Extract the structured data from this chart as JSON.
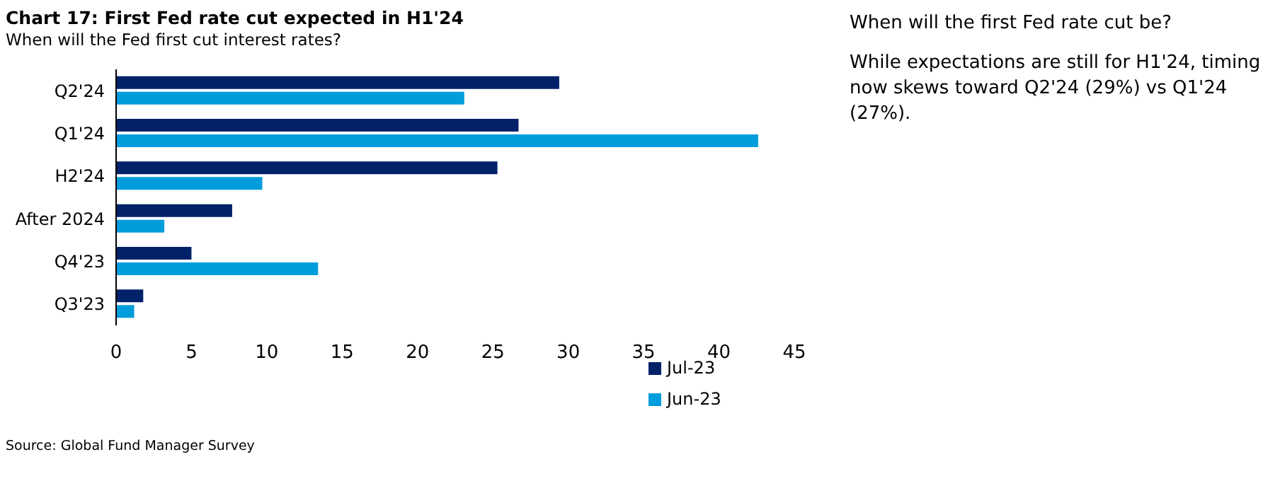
{
  "chart_data": {
    "type": "bar",
    "orientation": "horizontal",
    "title": "Chart 17: First Fed rate cut expected in H1'24",
    "subtitle": "When will the Fed first cut interest rates?",
    "categories": [
      "Q2'24",
      "Q1'24",
      "H2'24",
      "After 2024",
      "Q4'23",
      "Q3'23"
    ],
    "series": [
      {
        "name": "Jul-23",
        "color": "#012169",
        "values": [
          29.4,
          26.7,
          25.3,
          7.7,
          5.0,
          1.8
        ]
      },
      {
        "name": "Jun-23",
        "color": "#009ddc",
        "values": [
          23.1,
          42.6,
          9.7,
          3.2,
          13.4,
          1.2
        ]
      }
    ],
    "xlim": [
      0,
      45
    ],
    "xticks": [
      0,
      5,
      10,
      15,
      20,
      25,
      30,
      35,
      40,
      45
    ],
    "grid": false,
    "legend": "bottom right",
    "annotations": [
      "When will the first Fed rate cut be?",
      "While expectations are still for H1'24, timing now skews toward Q2'24 (29%) vs Q1'24 (27%).",
      "Source: Global Fund Manager Survey"
    ]
  }
}
